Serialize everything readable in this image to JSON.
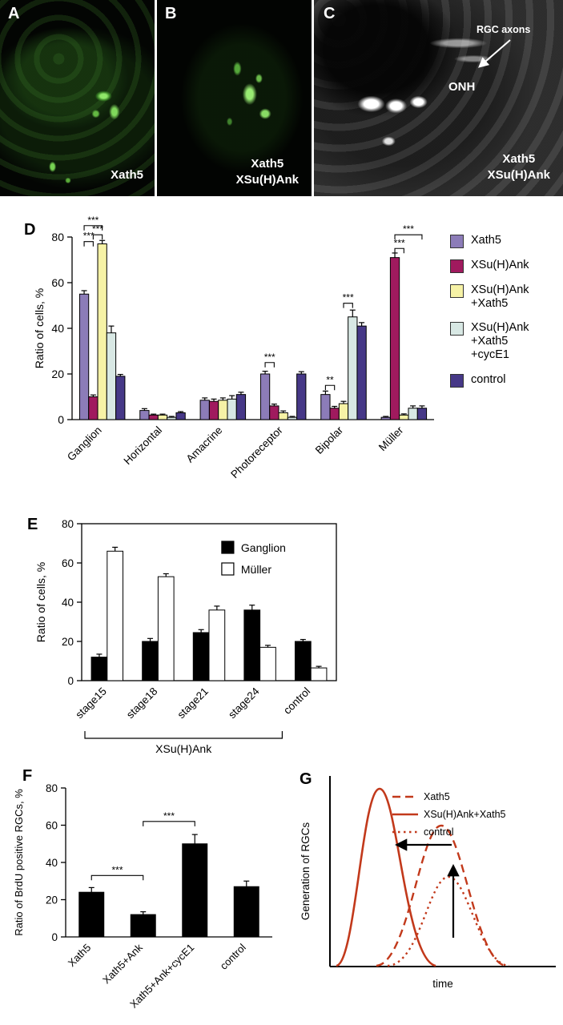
{
  "panels": {
    "A": {
      "label": "A",
      "caption": "Xath5"
    },
    "B": {
      "label": "B",
      "caption_line1": "Xath5",
      "caption_line2": "XSu(H)Ank"
    },
    "C": {
      "label": "C",
      "rgc_axons": "RGC axons",
      "onh": "ONH",
      "caption_line1": "Xath5",
      "caption_line2": "XSu(H)Ank"
    },
    "D": {
      "label": "D"
    },
    "E": {
      "label": "E"
    },
    "F": {
      "label": "F"
    },
    "G": {
      "label": "G"
    }
  },
  "chart_data": [
    {
      "panel": "D",
      "type": "bar",
      "ylabel": "Ratio of cells, %",
      "ylim": [
        0,
        80
      ],
      "yticks": [
        0,
        20,
        40,
        60,
        80
      ],
      "categories": [
        "Ganglion",
        "Horizontal",
        "Amacrine",
        "Photoreceptor",
        "Bipolar",
        "Müller"
      ],
      "series": [
        {
          "name": "Xath5",
          "color": "#8C7CB8",
          "values": [
            55,
            4,
            8.5,
            20,
            11,
            1
          ],
          "errors": [
            1.5,
            0.8,
            1,
            1.2,
            1.5,
            0.4
          ]
        },
        {
          "name": "XSu(H)Ank",
          "color": "#A01A5E",
          "values": [
            10,
            2,
            8,
            6,
            5,
            71
          ],
          "errors": [
            0.8,
            0.4,
            1,
            0.8,
            0.8,
            2
          ]
        },
        {
          "name": "XSu(H)Ank+Xath5",
          "color": "#F6F2A6",
          "values": [
            77,
            2,
            8.5,
            3,
            7,
            2
          ],
          "errors": [
            1.5,
            0.4,
            1,
            0.8,
            1,
            0.5
          ]
        },
        {
          "name": "XSu(H)Ank+Xath5+cycE1",
          "color": "#D8E8E4",
          "values": [
            38,
            1,
            9,
            1,
            45,
            5
          ],
          "errors": [
            3,
            0.4,
            1.5,
            0.4,
            3,
            1
          ]
        },
        {
          "name": "control",
          "color": "#463887",
          "values": [
            19,
            3,
            11,
            20,
            41,
            5
          ],
          "errors": [
            0.8,
            0.5,
            1,
            1,
            1.5,
            1
          ]
        }
      ],
      "legend": [
        [
          "Xath5"
        ],
        [
          "XSu(H)Ank"
        ],
        [
          "XSu(H)Ank",
          "+Xath5"
        ],
        [
          "XSu(H)Ank",
          "+Xath5",
          "+cycE1"
        ],
        [
          "control"
        ]
      ],
      "significance": [
        {
          "category": 0,
          "between": [
            0,
            1
          ],
          "y": 78,
          "label": "***"
        },
        {
          "category": 0,
          "between": [
            0,
            2
          ],
          "y": 85,
          "label": "***"
        },
        {
          "category": 0,
          "between": [
            1,
            2
          ],
          "y": 81,
          "label": "***"
        },
        {
          "category": 3,
          "between": [
            0,
            1
          ],
          "y": 25,
          "label": "***"
        },
        {
          "category": 4,
          "between": [
            0,
            1
          ],
          "y": 15,
          "label": "**"
        },
        {
          "category": 4,
          "between": [
            2,
            3
          ],
          "y": 51,
          "label": "***"
        },
        {
          "category": 5,
          "between": [
            1,
            2
          ],
          "y": 75,
          "label": "***"
        },
        {
          "category": 5,
          "between": [
            1,
            4
          ],
          "y": 81,
          "label": "***"
        }
      ]
    },
    {
      "panel": "E",
      "type": "bar",
      "ylabel": "Ratio of cells, %",
      "ylim": [
        0,
        80
      ],
      "yticks": [
        0,
        20,
        40,
        60,
        80
      ],
      "categories": [
        "stage15",
        "stage18",
        "stage21",
        "stage24",
        "control"
      ],
      "series": [
        {
          "name": "Ganglion",
          "color": "#000000",
          "values": [
            12,
            20,
            24.5,
            36,
            20
          ],
          "errors": [
            1.5,
            1.5,
            1.5,
            2.5,
            1
          ]
        },
        {
          "name": "Müller",
          "color": "#FFFFFF",
          "values": [
            66,
            53,
            36,
            17,
            6.5
          ],
          "errors": [
            2,
            1.5,
            2,
            1,
            0.8
          ]
        }
      ],
      "group_bracket": {
        "from": 0,
        "to": 3,
        "label": "XSu(H)Ank"
      }
    },
    {
      "panel": "F",
      "type": "bar",
      "ylabel": "Ratio of BrdU positive RGCs, %",
      "ylim": [
        0,
        80
      ],
      "yticks": [
        0,
        20,
        40,
        60,
        80
      ],
      "bar_color": "#000000",
      "categories": [
        "Xath5",
        "Xath5+Ank",
        "Xath5+Ank+cycE1",
        "control"
      ],
      "values": [
        24,
        12,
        50,
        27
      ],
      "errors": [
        2.5,
        1.5,
        5,
        3
      ],
      "significance": [
        {
          "between": [
            0,
            1
          ],
          "y": 33,
          "label": "***"
        },
        {
          "between": [
            1,
            2
          ],
          "y": 62,
          "label": "***"
        }
      ]
    },
    {
      "panel": "G",
      "type": "line",
      "ylabel": "Generation of RGCs",
      "xlabel": "time",
      "curve_color": "#C2391B",
      "legend": [
        {
          "name": "Xath5",
          "style": "dashed"
        },
        {
          "name": "XSu(H)Ank+Xath5",
          "style": "solid"
        },
        {
          "name": "control",
          "style": "dotted"
        }
      ],
      "annotations": [
        "left-shift-arrow",
        "up-arrow"
      ]
    }
  ]
}
